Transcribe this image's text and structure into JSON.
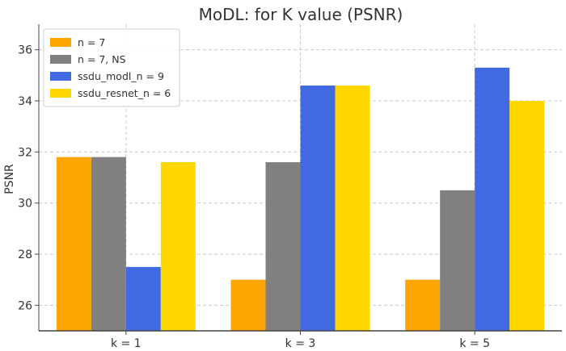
{
  "chart_data": {
    "type": "bar",
    "title": "MoDL: for K value (PSNR)",
    "xlabel": "",
    "ylabel": "PSNR",
    "categories": [
      "k = 1",
      "k = 3",
      "k = 5"
    ],
    "series": [
      {
        "name": "n = 7",
        "values": [
          31.8,
          27.0,
          27.0
        ],
        "color": "#FFA500"
      },
      {
        "name": "n = 7, NS",
        "values": [
          31.8,
          31.6,
          30.5
        ],
        "color": "#808080"
      },
      {
        "name": "ssdu_modl_n = 9",
        "values": [
          27.5,
          34.6,
          35.3
        ],
        "color": "#4169E1"
      },
      {
        "name": "ssdu_resnet_n = 6",
        "values": [
          31.6,
          34.6,
          34.0
        ],
        "color": "#FFD700"
      }
    ],
    "ylim": [
      25,
      37
    ],
    "yticks": [
      26,
      28,
      30,
      32,
      34,
      36
    ],
    "grid": true,
    "legend_position": "top-left"
  }
}
